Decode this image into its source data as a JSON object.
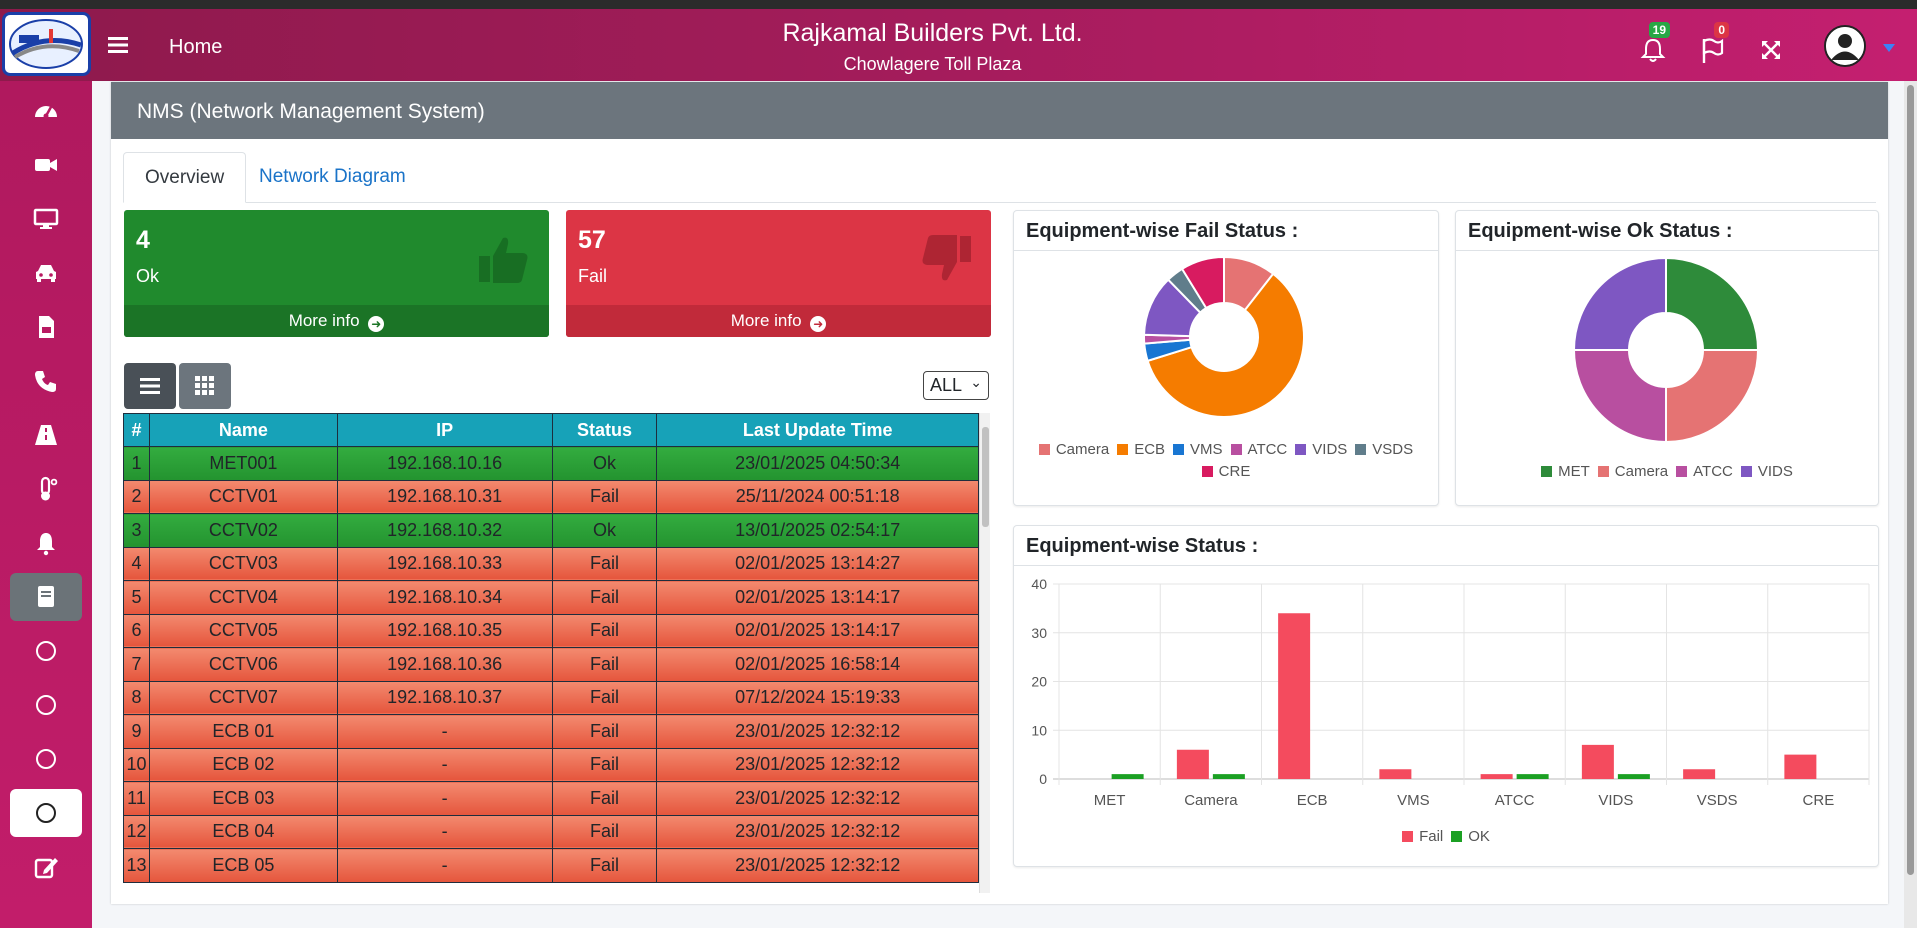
{
  "header": {
    "home_label": "Home",
    "company": "Rajkamal Builders Pvt. Ltd.",
    "plaza": "Chowlagere Toll Plaza",
    "notifications_count": "19",
    "flags_count": "0"
  },
  "page": {
    "title": "NMS (Network Management System)",
    "tabs": [
      "Overview",
      "Network Diagram"
    ]
  },
  "summary": {
    "ok": {
      "count": "4",
      "label": "Ok",
      "more": "More info"
    },
    "fail": {
      "count": "57",
      "label": "Fail",
      "more": "More info"
    }
  },
  "filter": {
    "selected": "ALL"
  },
  "table": {
    "headers": [
      "#",
      "Name",
      "IP",
      "Status",
      "Last Update Time"
    ],
    "rows": [
      [
        "1",
        "MET001",
        "192.168.10.16",
        "Ok",
        "23/01/2025 04:50:34"
      ],
      [
        "2",
        "CCTV01",
        "192.168.10.31",
        "Fail",
        "25/11/2024 00:51:18"
      ],
      [
        "3",
        "CCTV02",
        "192.168.10.32",
        "Ok",
        "13/01/2025 02:54:17"
      ],
      [
        "4",
        "CCTV03",
        "192.168.10.33",
        "Fail",
        "02/01/2025 13:14:27"
      ],
      [
        "5",
        "CCTV04",
        "192.168.10.34",
        "Fail",
        "02/01/2025 13:14:17"
      ],
      [
        "6",
        "CCTV05",
        "192.168.10.35",
        "Fail",
        "02/01/2025 13:14:17"
      ],
      [
        "7",
        "CCTV06",
        "192.168.10.36",
        "Fail",
        "02/01/2025 16:58:14"
      ],
      [
        "8",
        "CCTV07",
        "192.168.10.37",
        "Fail",
        "07/12/2024 15:19:33"
      ],
      [
        "9",
        "ECB 01",
        "-",
        "Fail",
        "23/01/2025 12:32:12"
      ],
      [
        "10",
        "ECB 02",
        "-",
        "Fail",
        "23/01/2025 12:32:12"
      ],
      [
        "11",
        "ECB 03",
        "-",
        "Fail",
        "23/01/2025 12:32:12"
      ],
      [
        "12",
        "ECB 04",
        "-",
        "Fail",
        "23/01/2025 12:32:12"
      ],
      [
        "13",
        "ECB 05",
        "-",
        "Fail",
        "23/01/2025 12:32:12"
      ]
    ]
  },
  "colors": {
    "ok_green": "#1f8a2a",
    "fail_red": "#dc3545",
    "teal_header": "#17a2b8",
    "Camera": "#e57373",
    "ECB": "#f57c00",
    "VMS": "#1976d2",
    "ATCC": "#b84fa0",
    "VIDS": "#7e57c2",
    "VSDS": "#607d8b",
    "CRE": "#d81b60",
    "MET": "#2e8b3a",
    "bar_fail": "#f44b5e",
    "bar_ok": "#1ba023"
  },
  "chart_data": [
    {
      "type": "pie",
      "title": "Equipment-wise Fail Status :",
      "categories": [
        "Camera",
        "ECB",
        "VMS",
        "ATCC",
        "VIDS",
        "VSDS",
        "CRE"
      ],
      "values": [
        6,
        34,
        2,
        1,
        7,
        2,
        5
      ]
    },
    {
      "type": "pie",
      "title": "Equipment-wise Ok Status :",
      "categories": [
        "MET",
        "Camera",
        "ATCC",
        "VIDS"
      ],
      "values": [
        1,
        1,
        1,
        1
      ]
    },
    {
      "type": "bar",
      "title": "Equipment-wise Status :",
      "categories": [
        "MET",
        "Camera",
        "ECB",
        "VMS",
        "ATCC",
        "VIDS",
        "VSDS",
        "CRE"
      ],
      "series": [
        {
          "name": "Fail",
          "values": [
            0,
            6,
            34,
            2,
            1,
            7,
            2,
            5
          ]
        },
        {
          "name": "OK",
          "values": [
            1,
            1,
            0,
            0,
            1,
            1,
            0,
            0
          ]
        }
      ],
      "ylim": [
        0,
        40
      ],
      "yticks": [
        0,
        10,
        20,
        30,
        40
      ]
    }
  ]
}
